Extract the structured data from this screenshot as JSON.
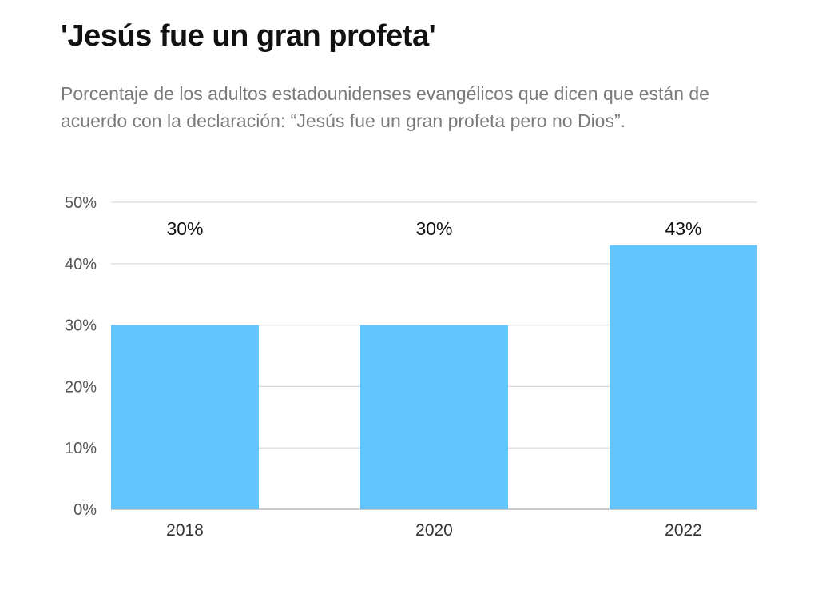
{
  "colors": {
    "bar": "#63c5fd",
    "grid": "#d9d9d9",
    "axis": "#aaaaaa"
  },
  "chart_data": {
    "type": "bar",
    "title": "'Jesús fue un gran profeta'",
    "subtitle": "Porcentaje de los adultos estadounidenses evangélicos que dicen que están de acuerdo con la declaración: “Jesús fue un gran profeta pero no Dios”.",
    "categories": [
      "2018",
      "2020",
      "2022"
    ],
    "values": [
      30,
      30,
      43
    ],
    "data_labels": [
      "30%",
      "30%",
      "43%"
    ],
    "y_ticks": [
      0,
      10,
      20,
      30,
      40,
      50
    ],
    "y_tick_labels": [
      "0%",
      "10%",
      "20%",
      "30%",
      "40%",
      "50%"
    ],
    "ylim": [
      0,
      50
    ],
    "xlabel": "",
    "ylabel": "",
    "grid": true
  }
}
